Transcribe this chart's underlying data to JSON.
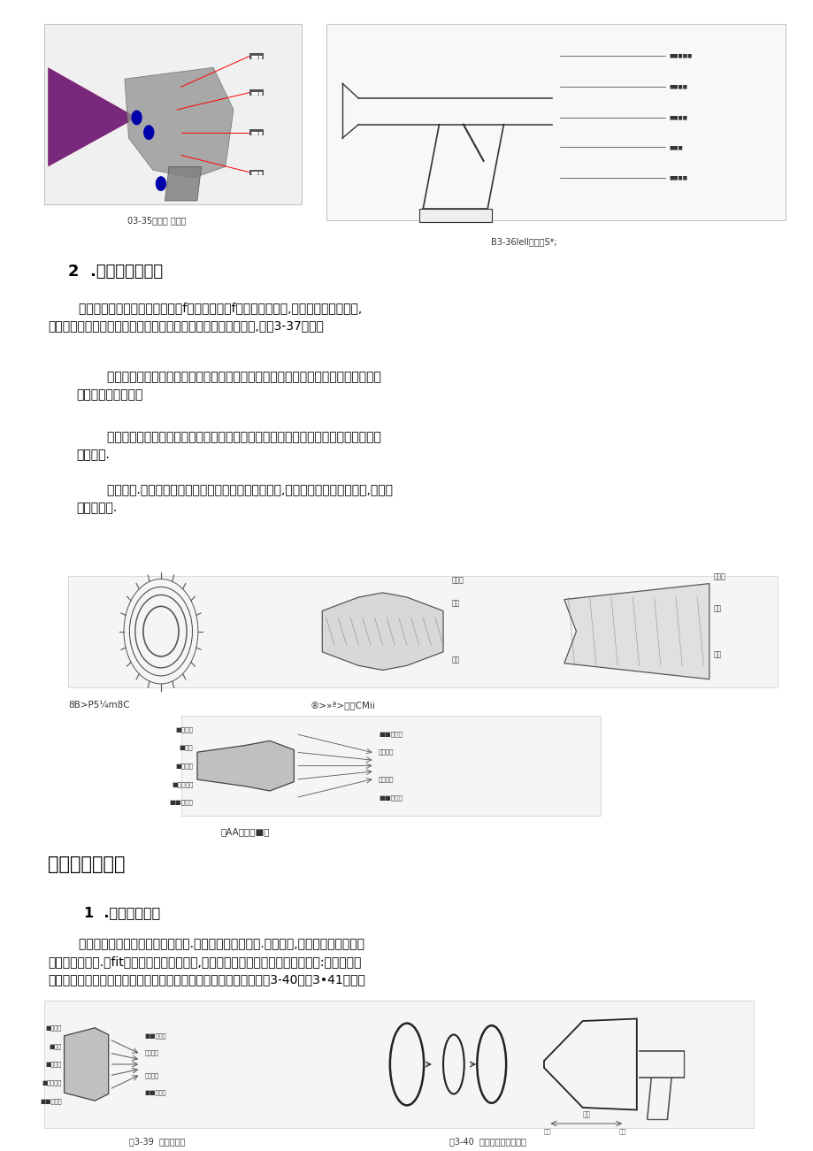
{
  "bg_color": "#ffffff",
  "page_width": 9.2,
  "page_height": 13.01,
  "caption_left": "03-35式方式 性旧构",
  "caption_right": "B3-36lell欢档取S*;",
  "heading2_work": "2  .喷枪的工作原理",
  "heading1_adjust": "三、喷枪的调整",
  "heading2_flow": "1  .调节涂料流量",
  "para1": "        空气帽引导压缩空气撞击涂料，f使其雾化成ィf一定直径的漆雾,空气帽上有三个小孔,\n分别为中央气孔、要化气孔（辅助孔）和喷福控制气孔（侧孔）,如图3-37所示。",
  "para2": "        第一阶段，涂料由于灯吸作用从喷嘴喷出后，被从环形口喷出的气流包围，气流产生\n的气旋使涂料分散。",
  "para3": "        第：阶段，涂料的液流与从雾化气孔喷出的气流相遇时，气流控制液流动，并进一步\n使其分散.",
  "para4": "        第三阶段.涂料受从空气帽喷棉控制孔喷出的气流作用,气流从相对方向冲击涂料,使其成\n为扇形液雾.",
  "para5": "        流量调整旋钮在拧出时漆流量增大.在拧入时漆流眼减小.在操作时,流量调整旋矩应按具\n体要求进行询整.流fit过大将使油漆流出过多,易造成流挂、漆膜过麻和雾化不良等:流量过小将\n使油漆流出求过小，易造成失光、漆膜过箱、遮蔽力低等缺陷，如图3-40和图3•41所示。",
  "cap_mid_left": "8B>P5¼m8C",
  "cap_mid_right": "®>»ª>均工CMii",
  "cap_mid2": "员AA事稍的■化",
  "cap_bot_left": "图3-39  喷枪的雾化",
  "cap_bot_right": "图3-40  调节涂料流量原理图"
}
